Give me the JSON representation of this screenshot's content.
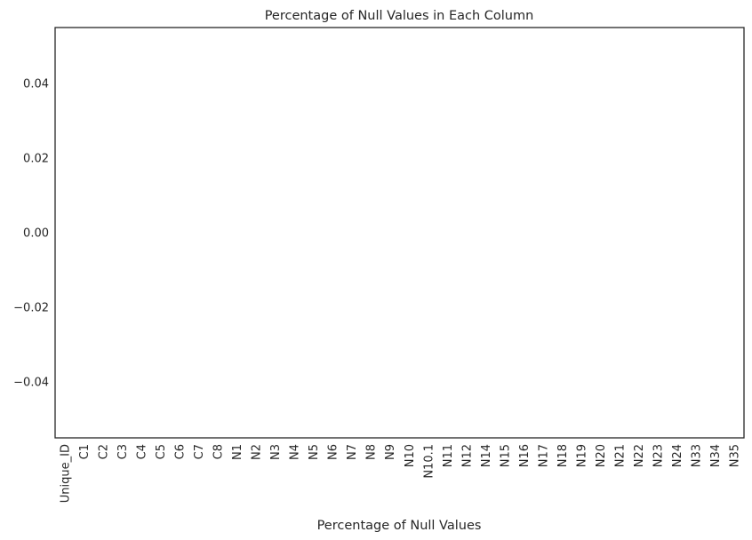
{
  "chart_data": {
    "type": "bar",
    "title": "Percentage of Null Values in Each Column",
    "xlabel": "Percentage of Null Values",
    "ylabel": "",
    "categories": [
      "Unique_ID",
      "C1",
      "C2",
      "C3",
      "C4",
      "C5",
      "C6",
      "C7",
      "C8",
      "N1",
      "N2",
      "N3",
      "N4",
      "N5",
      "N6",
      "N7",
      "N8",
      "N9",
      "N10",
      "N10.1",
      "N11",
      "N12",
      "N14",
      "N15",
      "N16",
      "N17",
      "N18",
      "N19",
      "N20",
      "N21",
      "N22",
      "N23",
      "N24",
      "N33",
      "N34",
      "N35"
    ],
    "values": [
      0,
      0,
      0,
      0,
      0,
      0,
      0,
      0,
      0,
      0,
      0,
      0,
      0,
      0,
      0,
      0,
      0,
      0,
      0,
      0,
      0,
      0,
      0,
      0,
      0,
      0,
      0,
      0,
      0,
      0,
      0,
      0,
      0,
      0,
      0,
      0
    ],
    "ylim": [
      -0.055,
      0.055
    ],
    "yticks": [
      -0.04,
      -0.02,
      0.0,
      0.02,
      0.04
    ],
    "ytick_labels": [
      "−0.04",
      "−0.02",
      "0.00",
      "0.02",
      "0.04"
    ],
    "grid": false,
    "colors": {
      "frame": "#262626",
      "bar": "#4c72b0"
    }
  }
}
